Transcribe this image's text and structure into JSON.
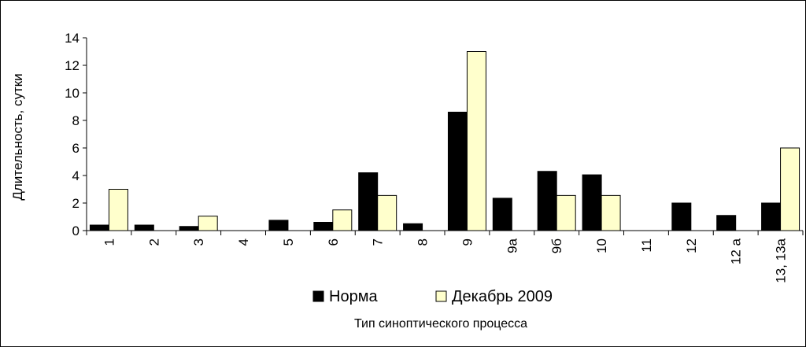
{
  "chart_data": {
    "type": "bar",
    "ylabel": "Длительность, сутки",
    "xlabel": "Тип синоптического процесса",
    "ylim": [
      0,
      14
    ],
    "yticks": [
      0,
      2,
      4,
      6,
      8,
      10,
      12,
      14
    ],
    "categories": [
      "1",
      "2",
      "3",
      "4",
      "5",
      "6",
      "7",
      "8",
      "9",
      "9а",
      "9б",
      "10",
      "11",
      "12",
      "12 а",
      "13, 13а"
    ],
    "series": [
      {
        "name": "Норма",
        "color": "#000000",
        "values": [
          0.4,
          0.4,
          0.3,
          0,
          0.75,
          0.6,
          4.2,
          0.5,
          8.6,
          2.35,
          4.3,
          4.05,
          0,
          2.0,
          1.1,
          2.0
        ]
      },
      {
        "name": "Декабрь 2009",
        "color": "#ffffcc",
        "values": [
          3.0,
          0,
          1.05,
          0,
          0,
          1.5,
          2.55,
          0,
          13.0,
          0,
          2.55,
          2.55,
          0,
          0,
          0,
          6.0
        ]
      }
    ],
    "grid": false,
    "legend_position": "bottom"
  }
}
